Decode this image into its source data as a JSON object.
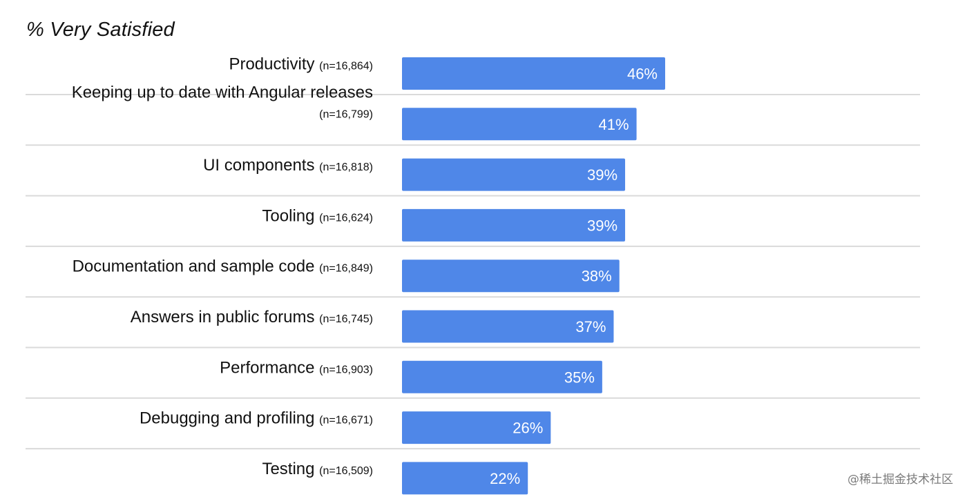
{
  "chart_data": {
    "type": "bar",
    "orientation": "horizontal",
    "title": "% Very Satisfied",
    "xlabel": "",
    "ylabel": "",
    "xlim": [
      0,
      100
    ],
    "grid": false,
    "bar_color": "#4f87e8",
    "separator_color": "#dadada",
    "categories": [
      {
        "label": "Productivity",
        "n": "(n=16,864)",
        "value": 46,
        "value_label": "46%"
      },
      {
        "label": "Keeping up to date with Angular releases",
        "n": "(n=16,799)",
        "value": 41,
        "value_label": "41%",
        "wrapped": true
      },
      {
        "label": "UI components",
        "n": "(n=16,818)",
        "value": 39,
        "value_label": "39%"
      },
      {
        "label": "Tooling",
        "n": "(n=16,624)",
        "value": 39,
        "value_label": "39%"
      },
      {
        "label": "Documentation and sample code",
        "n": "(n=16,849)",
        "value": 38,
        "value_label": "38%"
      },
      {
        "label": "Answers in public forums",
        "n": "(n=16,745)",
        "value": 37,
        "value_label": "37%"
      },
      {
        "label": "Performance",
        "n": "(n=16,903)",
        "value": 35,
        "value_label": "35%"
      },
      {
        "label": "Debugging and profiling",
        "n": "(n=16,671)",
        "value": 26,
        "value_label": "26%"
      },
      {
        "label": "Testing",
        "n": "(n=16,509)",
        "value": 22,
        "value_label": "22%"
      }
    ]
  },
  "watermark": "@稀土掘金技术社区"
}
